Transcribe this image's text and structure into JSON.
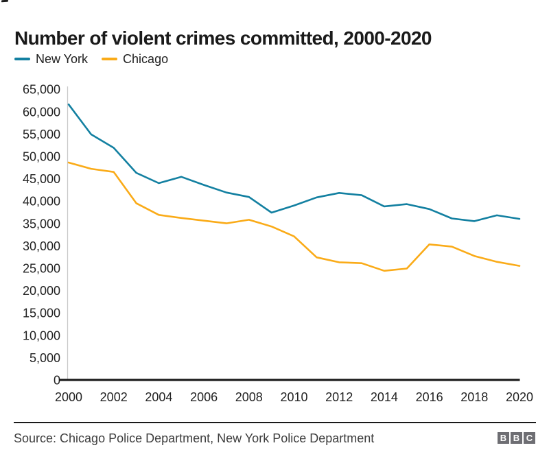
{
  "title": "Number of violent crimes committed, 2000-2020",
  "chart_data": {
    "type": "line",
    "title": "Number of violent crimes committed, 2000-2020",
    "xlabel": "",
    "ylabel": "",
    "x": [
      2000,
      2001,
      2002,
      2003,
      2004,
      2005,
      2006,
      2007,
      2008,
      2009,
      2010,
      2011,
      2012,
      2013,
      2014,
      2015,
      2016,
      2017,
      2018,
      2019,
      2020
    ],
    "series": [
      {
        "name": "New York",
        "color": "#1380A1",
        "values": [
          61700,
          55000,
          52000,
          46400,
          44100,
          45500,
          43700,
          42000,
          41000,
          37500,
          39100,
          40900,
          41900,
          41400,
          38900,
          39400,
          38300,
          36200,
          35600,
          36900,
          36100
        ]
      },
      {
        "name": "Chicago",
        "color": "#FAAB18",
        "values": [
          48700,
          47300,
          46600,
          39600,
          37000,
          36300,
          35700,
          35100,
          35900,
          34400,
          32200,
          27500,
          26400,
          26200,
          24500,
          25000,
          30400,
          29900,
          27800,
          26500,
          25600
        ]
      }
    ],
    "xlim": [
      2000,
      2020
    ],
    "ylim": [
      0,
      65000
    ],
    "xticks": [
      2000,
      2002,
      2004,
      2006,
      2008,
      2010,
      2012,
      2014,
      2016,
      2018,
      2020
    ],
    "yticks": [
      0,
      5000,
      10000,
      15000,
      20000,
      25000,
      30000,
      35000,
      40000,
      45000,
      50000,
      55000,
      60000,
      65000
    ],
    "grid": false,
    "legend_position": "top-left",
    "axis_color": "#1a1a1a",
    "y_axis_line_color": "#c9c9c9",
    "tick_label_color": "#222222"
  },
  "footer": {
    "source": "Source: Chicago Police Department, New York Police Department",
    "logo_blocks": [
      "B",
      "B",
      "C"
    ]
  }
}
